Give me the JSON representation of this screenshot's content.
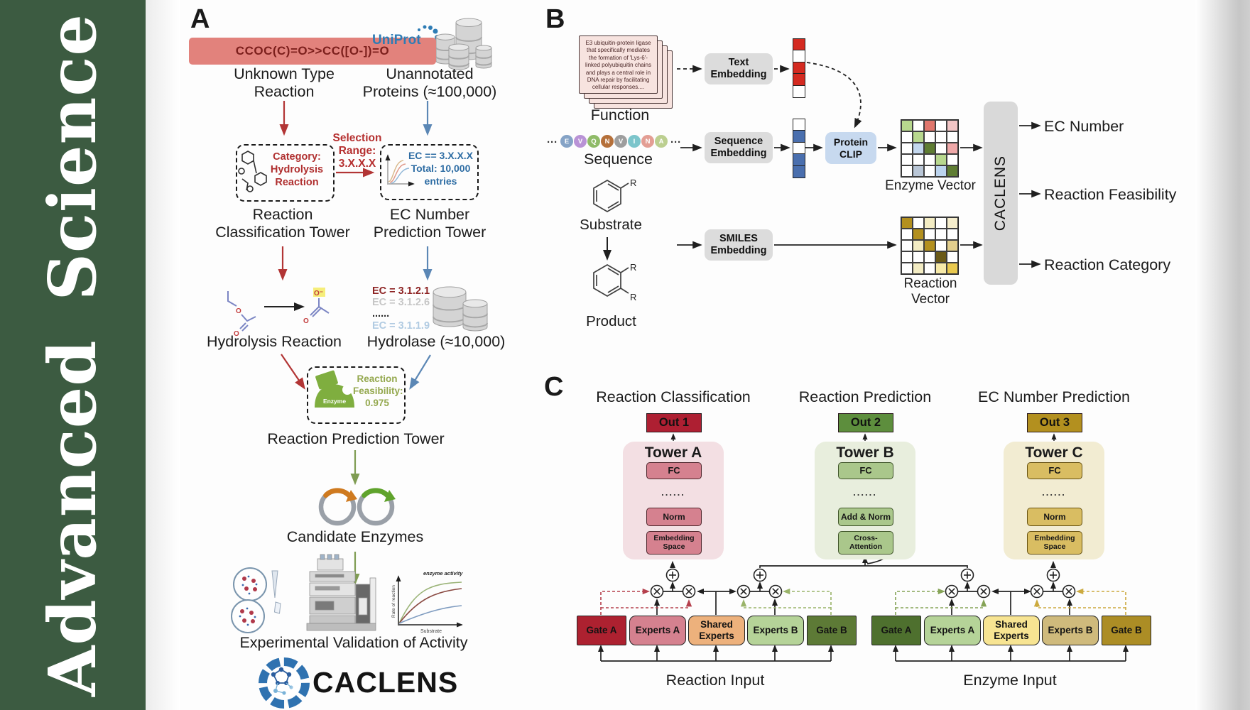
{
  "sidebar": {
    "word1": "Advanced",
    "word2": "Science",
    "bg": "#3c5b41"
  },
  "panelA": {
    "label": "A",
    "smiles": "CCOC(C)=O>>CC([O-])=O",
    "smiles_box_bg": "#e2827c",
    "unknown_caption": "Unknown Type\nReaction",
    "uniprot_logo": "UniProt",
    "unannotated_caption": "Unannotated\nProteins (≈100,000)",
    "selection_range": "Selection\nRange:\n3.X.X.X",
    "category_text": "Category:\nHydrolysis\nReaction",
    "ec_filter_text": "EC == 3.X.X.X\nTotal: 10,000\nentries",
    "classification_tower_caption": "Reaction\nClassification Tower",
    "ec_tower_caption": "EC Number\nPrediction Tower",
    "hydrolysis_caption": "Hydrolysis Reaction",
    "hydrolase_caption": "Hydrolase (≈10,000)",
    "ec_list": [
      {
        "text": "EC = 3.1.2.1",
        "color": "#8d2323"
      },
      {
        "text": "EC = 3.1.2.6",
        "color": "#c6c6c6"
      },
      {
        "text": "......",
        "color": "#222222"
      },
      {
        "text": "EC = 3.1.1.9",
        "color": "#b1cbe2"
      }
    ],
    "enzyme_blob_label": "Enzyme",
    "feasibility_text": "Reaction\nFeasibility:\n0.975",
    "prediction_tower_caption": "Reaction Prediction Tower",
    "candidate_caption": "Candidate Enzymes",
    "activity_plot": {
      "curve_label": "enzyme activity",
      "ylabel": "Rate of reaction",
      "xlabel": "Substrate"
    },
    "validation_caption": "Experimental Validation of Activity",
    "brand": "CACLENS"
  },
  "panelB": {
    "label": "B",
    "function_card_text": "E3 ubiquitin-protein ligase that specifically mediates the formation of 'Lys-6'-linked polyubiquitin chains and plays a central role in DNA repair by facilitating cellular responses....",
    "function_caption": "Function",
    "ellipsis": "···",
    "sequence_residues": [
      {
        "letter": "E",
        "color": "#85a3c6"
      },
      {
        "letter": "V",
        "color": "#b993d6"
      },
      {
        "letter": "Q",
        "color": "#8fbb68"
      },
      {
        "letter": "N",
        "color": "#b5703a"
      },
      {
        "letter": "V",
        "color": "#9e9e9e"
      },
      {
        "letter": "I",
        "color": "#7cc5cb"
      },
      {
        "letter": "N",
        "color": "#e39e94"
      },
      {
        "letter": "A",
        "color": "#bccf90"
      }
    ],
    "sequence_caption": "Sequence",
    "substrate_caption": "Substrate",
    "product_caption": "Product",
    "r_label": "R",
    "text_embedding_label": "Text\nEmbedding",
    "sequence_embedding_label": "Sequence\nEmbedding",
    "smiles_embedding_label": "SMILES\nEmbedding",
    "protein_clip_label": "Protein\nCLIP",
    "text_vector_cells": [
      "#d42a20",
      "#ffffff",
      "#d42a20",
      "#d42a20",
      "#ffffff"
    ],
    "sequence_vector_cells": [
      "#ffffff",
      "#4a6fae",
      "#ffffff",
      "#4a6fae",
      "#4a6fae"
    ],
    "enzyme_matrix": [
      [
        "#b8d88e",
        "#ffffff",
        "#e0766c",
        "#ffffff",
        "#f2c5c5"
      ],
      [
        "#ffffff",
        "#b8d88e",
        "#ffffff",
        "#ffffff",
        "#ffffff"
      ],
      [
        "#ffffff",
        "#c3d7ee",
        "#5f7d33",
        "#ffffff",
        "#efa8a8"
      ],
      [
        "#ffffff",
        "#ffffff",
        "#ffffff",
        "#b8d88e",
        "#ffffff"
      ],
      [
        "#ffffff",
        "#b9c6d6",
        "#ffffff",
        "#bcd4ee",
        "#5f7d33"
      ]
    ],
    "enzyme_vector_caption": "Enzyme Vector",
    "reaction_matrix": [
      [
        "#b3901f",
        "#ffffff",
        "#f3ecc3",
        "#ffffff",
        "#f6eecd"
      ],
      [
        "#ffffff",
        "#b3901f",
        "#ffffff",
        "#ffffff",
        "#ffffff"
      ],
      [
        "#ffffff",
        "#f3ecc3",
        "#b3901f",
        "#ffffff",
        "#e3cf8d"
      ],
      [
        "#ffffff",
        "#ffffff",
        "#ffffff",
        "#6b5a17",
        "#ffffff"
      ],
      [
        "#ffffff",
        "#f3ecc3",
        "#ffffff",
        "#f6e9a8",
        "#e9c94f"
      ]
    ],
    "reaction_vector_caption": "Reaction Vector",
    "caclens_label": "CACLENS",
    "outputs": [
      "EC Number",
      "Reaction Feasibility",
      "Reaction Category"
    ]
  },
  "panelC": {
    "label": "C",
    "columns": [
      {
        "title": "Reaction Classification",
        "out": "Out 1",
        "out_bg": "#ae1f32",
        "tower": "Tower A",
        "tower_bg": "#f3dfe3",
        "box_bg": "#d5818f",
        "box_border": "#4f262c",
        "fc": "FC",
        "dots": "......",
        "mid": "Norm",
        "bottom": "Embedding\nSpace"
      },
      {
        "title": "Reaction Prediction",
        "out": "Out 2",
        "out_bg": "#5d8e3d",
        "tower": "Tower B",
        "tower_bg": "#e8eedd",
        "box_bg": "#aac78b",
        "box_border": "#3f5429",
        "fc": "FC",
        "dots": "......",
        "mid": "Add & Norm",
        "bottom": "Cross-\nAttention"
      },
      {
        "title": "EC Number Prediction",
        "out": "Out 3",
        "out_bg": "#b3901f",
        "tower": "Tower C",
        "tower_bg": "#f2ecd2",
        "box_bg": "#d9bd62",
        "box_border": "#665111",
        "fc": "FC",
        "dots": "......",
        "mid": "Norm",
        "bottom": "Embedding\nSpace"
      }
    ],
    "moe_blocks": [
      {
        "input_caption": "Reaction Input",
        "boxes": [
          {
            "label": "Gate A",
            "bg": "#ad2130",
            "square": true
          },
          {
            "label": "Experts A",
            "bg": "#d5818f"
          },
          {
            "label": "Shared\nExperts",
            "bg": "#edb17c"
          },
          {
            "label": "Experts B",
            "bg": "#b5d398"
          },
          {
            "label": "Gate B",
            "bg": "#5d7a36",
            "square": true
          }
        ]
      },
      {
        "input_caption": "Enzyme Input",
        "boxes": [
          {
            "label": "Gate A",
            "bg": "#4e702e",
            "square": true
          },
          {
            "label": "Experts A",
            "bg": "#b5d398"
          },
          {
            "label": "Shared\nExperts",
            "bg": "#f7e492"
          },
          {
            "label": "Experts B",
            "bg": "#cfba7c"
          },
          {
            "label": "Gate B",
            "bg": "#ac8d25",
            "square": true
          }
        ]
      }
    ]
  }
}
